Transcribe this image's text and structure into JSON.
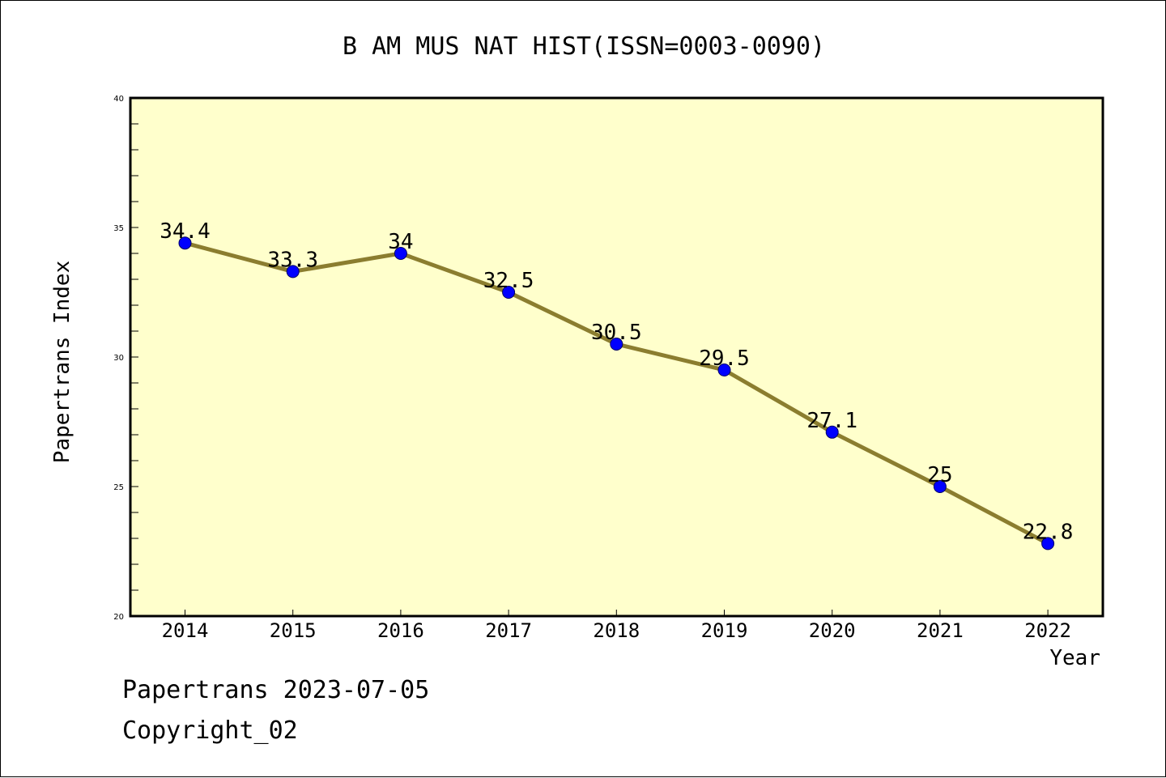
{
  "chart_data": {
    "type": "line",
    "title": "B AM MUS NAT HIST(ISSN=0003-0090)",
    "xlabel": "Year",
    "ylabel": "Papertrans Index",
    "categories": [
      "2014",
      "2015",
      "2016",
      "2017",
      "2018",
      "2019",
      "2020",
      "2021",
      "2022"
    ],
    "values": [
      34.4,
      33.3,
      34,
      32.5,
      30.5,
      29.5,
      27.1,
      25,
      22.8
    ],
    "data_labels": [
      "34.4",
      "33.3",
      "34",
      "32.5",
      "30.5",
      "29.5",
      "27.1",
      "25",
      "22.8"
    ],
    "ylim": [
      20,
      40
    ],
    "yticks": [
      "20",
      "25",
      "30",
      "35",
      "40"
    ],
    "grid": false,
    "colors": {
      "plot_background": "#ffffcc",
      "line": "#8b7d2f",
      "marker": "#0000ff"
    }
  },
  "footer": {
    "line1": "Papertrans 2023-07-05",
    "line2": "Copyright_02"
  }
}
